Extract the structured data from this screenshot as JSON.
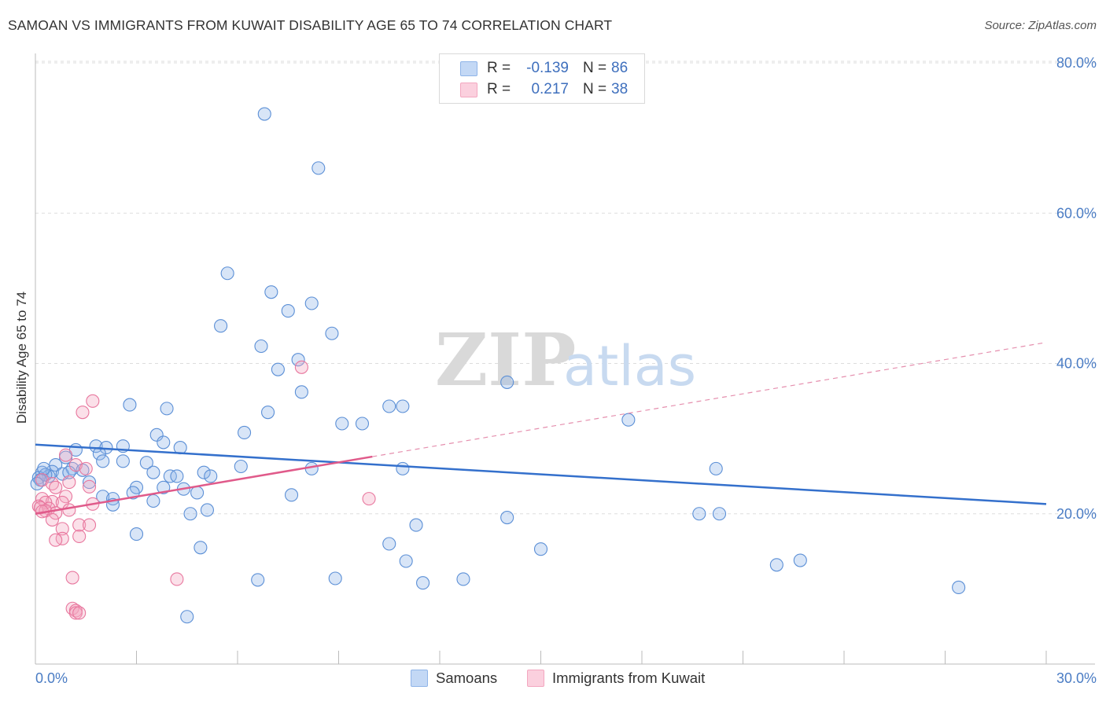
{
  "title": "SAMOAN VS IMMIGRANTS FROM KUWAIT DISABILITY AGE 65 TO 74 CORRELATION CHART",
  "source": "Source: ZipAtlas.com",
  "watermark": {
    "zip": "ZIP",
    "atlas": "atlas"
  },
  "legend": {
    "rows": [
      {
        "r_label": "R =",
        "r_value": "-0.139",
        "n_label": "N =",
        "n_value": "86",
        "color": "#8fb4e8"
      },
      {
        "r_label": "R =",
        "r_value": "0.217",
        "n_label": "N =",
        "n_value": "38",
        "color": "#f3a7c0"
      }
    ]
  },
  "chart_data": {
    "type": "scatter",
    "title": "SAMOAN VS IMMIGRANTS FROM KUWAIT DISABILITY AGE 65 TO 74 CORRELATION CHART",
    "xlabel": "",
    "ylabel": "Disability Age 65 to 74",
    "xlim": [
      0,
      30
    ],
    "ylim": [
      0,
      80
    ],
    "x_tick_labels": [
      "0.0%",
      "30.0%"
    ],
    "y_tick_labels": [
      "20.0%",
      "40.0%",
      "60.0%",
      "80.0%"
    ],
    "y_ticks": [
      20,
      40,
      60,
      80
    ],
    "x_minor_ticks": [
      0,
      3,
      6,
      9,
      12,
      15,
      18,
      21,
      24,
      27,
      30
    ],
    "grid": true,
    "legend_position": "top-center",
    "series": [
      {
        "name": "Samoans",
        "color": "#8fb4e8",
        "stroke": "#5b8fd6",
        "trend": {
          "x": [
            0,
            30
          ],
          "y": [
            29.2,
            21.3
          ],
          "color": "#3470cc",
          "style": "solid"
        },
        "points": [
          [
            6.8,
            73.2
          ],
          [
            8.4,
            66.0
          ],
          [
            5.7,
            52.0
          ],
          [
            7.0,
            49.5
          ],
          [
            8.2,
            48.0
          ],
          [
            7.5,
            47.0
          ],
          [
            5.5,
            45.0
          ],
          [
            8.8,
            44.0
          ],
          [
            6.7,
            42.3
          ],
          [
            7.8,
            40.5
          ],
          [
            7.2,
            39.2
          ],
          [
            14.0,
            37.5
          ],
          [
            7.9,
            36.2
          ],
          [
            2.8,
            34.5
          ],
          [
            3.9,
            34.0
          ],
          [
            10.5,
            34.3
          ],
          [
            10.9,
            34.3
          ],
          [
            6.9,
            33.5
          ],
          [
            17.6,
            32.5
          ],
          [
            9.1,
            32.0
          ],
          [
            9.7,
            32.0
          ],
          [
            6.2,
            30.8
          ],
          [
            3.6,
            30.5
          ],
          [
            3.8,
            29.5
          ],
          [
            1.2,
            28.5
          ],
          [
            1.8,
            29.0
          ],
          [
            2.1,
            28.8
          ],
          [
            2.6,
            29.0
          ],
          [
            4.3,
            28.8
          ],
          [
            1.9,
            28.0
          ],
          [
            0.9,
            27.5
          ],
          [
            2.0,
            27.0
          ],
          [
            2.6,
            27.0
          ],
          [
            3.3,
            26.8
          ],
          [
            0.6,
            26.5
          ],
          [
            0.2,
            25.5
          ],
          [
            0.5,
            25.6
          ],
          [
            1.1,
            26.0
          ],
          [
            1.4,
            25.8
          ],
          [
            6.1,
            26.3
          ],
          [
            8.2,
            26.0
          ],
          [
            10.9,
            26.0
          ],
          [
            20.2,
            26.0
          ],
          [
            0.4,
            25.0
          ],
          [
            0.3,
            25.2
          ],
          [
            0.8,
            25.3
          ],
          [
            1.0,
            25.5
          ],
          [
            3.5,
            25.5
          ],
          [
            4.0,
            25.0
          ],
          [
            4.2,
            25.0
          ],
          [
            5.0,
            25.5
          ],
          [
            5.2,
            25.0
          ],
          [
            0.1,
            24.8
          ],
          [
            0.15,
            24.5
          ],
          [
            1.6,
            24.2
          ],
          [
            3.0,
            23.5
          ],
          [
            3.8,
            23.5
          ],
          [
            4.4,
            23.3
          ],
          [
            2.9,
            22.8
          ],
          [
            4.8,
            22.8
          ],
          [
            7.6,
            22.5
          ],
          [
            2.0,
            22.3
          ],
          [
            2.3,
            22.0
          ],
          [
            3.5,
            21.7
          ],
          [
            2.3,
            21.2
          ],
          [
            5.1,
            20.5
          ],
          [
            4.6,
            20.0
          ],
          [
            14.0,
            19.5
          ],
          [
            19.7,
            20.0
          ],
          [
            20.3,
            20.0
          ],
          [
            11.3,
            18.5
          ],
          [
            3.0,
            17.3
          ],
          [
            10.5,
            16.0
          ],
          [
            15.0,
            15.3
          ],
          [
            4.9,
            15.5
          ],
          [
            22.0,
            13.2
          ],
          [
            22.7,
            13.8
          ],
          [
            11.0,
            13.7
          ],
          [
            6.6,
            11.2
          ],
          [
            8.9,
            11.4
          ],
          [
            11.5,
            10.8
          ],
          [
            12.7,
            11.3
          ],
          [
            27.4,
            10.2
          ],
          [
            4.5,
            6.3
          ],
          [
            0.05,
            24.0
          ],
          [
            0.25,
            26.0
          ]
        ]
      },
      {
        "name": "Immigrants from Kuwait",
        "color": "#f3a7c0",
        "stroke": "#e8779e",
        "trend": {
          "x": [
            0,
            10.0
          ],
          "y": [
            20.0,
            27.6
          ],
          "color": "#e05a8a",
          "style": "solid"
        },
        "trend_extension": {
          "x": [
            10.0,
            30
          ],
          "y": [
            27.6,
            42.8
          ],
          "color": "#e58fae",
          "style": "dashed"
        },
        "points": [
          [
            7.9,
            39.5
          ],
          [
            1.7,
            35.0
          ],
          [
            1.4,
            33.5
          ],
          [
            0.9,
            27.8
          ],
          [
            1.2,
            26.5
          ],
          [
            1.5,
            26.0
          ],
          [
            0.2,
            24.5
          ],
          [
            1.0,
            24.2
          ],
          [
            0.5,
            24.0
          ],
          [
            1.6,
            23.6
          ],
          [
            0.6,
            23.5
          ],
          [
            0.9,
            22.3
          ],
          [
            0.2,
            22.0
          ],
          [
            0.5,
            21.6
          ],
          [
            0.3,
            21.5
          ],
          [
            0.8,
            21.5
          ],
          [
            1.7,
            21.3
          ],
          [
            9.9,
            22.0
          ],
          [
            0.1,
            21.0
          ],
          [
            0.15,
            20.8
          ],
          [
            0.4,
            20.7
          ],
          [
            0.3,
            20.4
          ],
          [
            0.2,
            20.3
          ],
          [
            0.6,
            20.1
          ],
          [
            1.0,
            20.5
          ],
          [
            0.5,
            19.2
          ],
          [
            1.3,
            18.5
          ],
          [
            1.6,
            18.5
          ],
          [
            0.8,
            18.0
          ],
          [
            1.3,
            17.0
          ],
          [
            0.8,
            16.7
          ],
          [
            0.6,
            16.5
          ],
          [
            1.1,
            11.5
          ],
          [
            4.2,
            11.3
          ],
          [
            1.1,
            7.4
          ],
          [
            1.2,
            7.1
          ],
          [
            1.2,
            6.8
          ],
          [
            1.3,
            6.8
          ]
        ]
      }
    ]
  },
  "bottom_legend": [
    "Samoans",
    "Immigrants from Kuwait"
  ]
}
